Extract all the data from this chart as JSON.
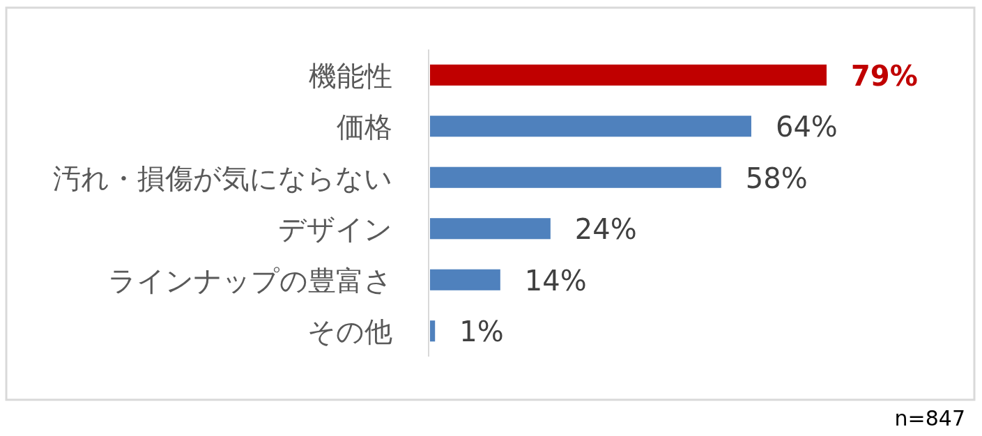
{
  "chart_data": {
    "type": "bar",
    "orientation": "horizontal",
    "categories": [
      "機能性",
      "価格",
      "汚れ・損傷が気にならない",
      "デザイン",
      "ラインナップの豊富さ",
      "その他"
    ],
    "values": [
      79,
      64,
      58,
      24,
      14,
      1
    ],
    "colors": [
      "#c00000",
      "#4f81bd",
      "#4f81bd",
      "#4f81bd",
      "#4f81bd",
      "#4f81bd"
    ],
    "value_labels": [
      "79%",
      "64%",
      "58%",
      "24%",
      "14%",
      "1%"
    ],
    "annotations": [
      "n=847"
    ]
  }
}
